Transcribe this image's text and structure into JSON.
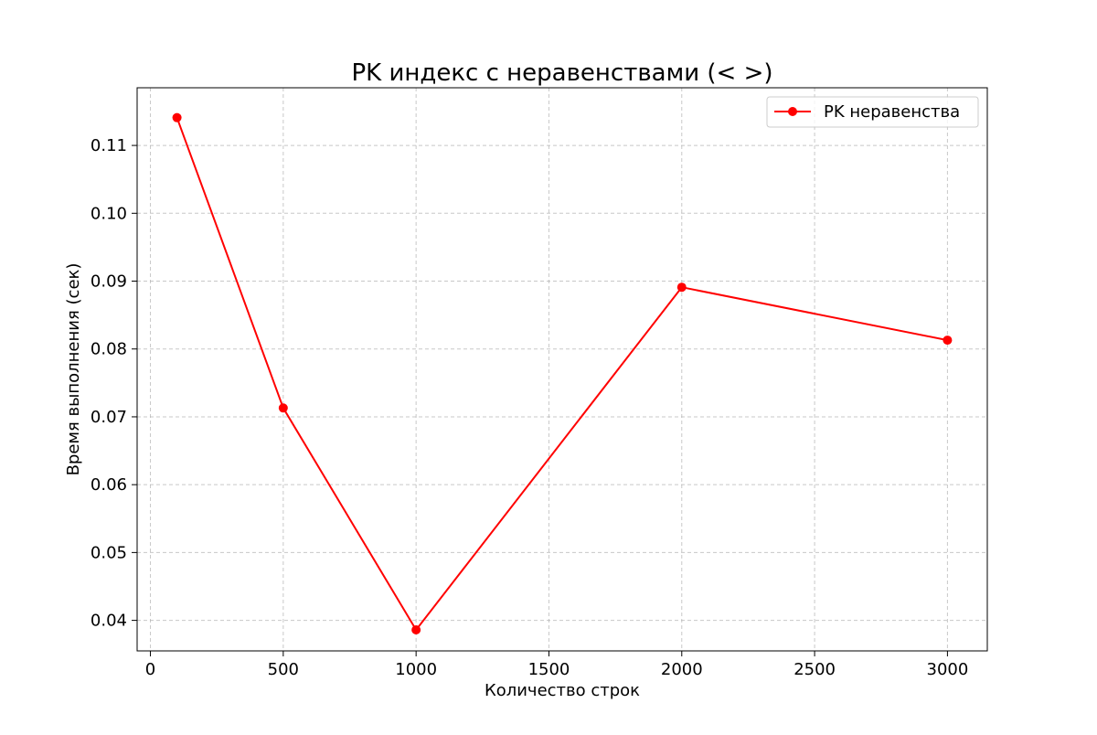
{
  "chart_data": {
    "type": "line",
    "title": "PK индекс с неравенствами (< >)",
    "xlabel": "Количество строк",
    "ylabel": "Время выполнения (сек)",
    "xlim": [
      -50,
      3150
    ],
    "ylim": [
      0.0355,
      0.1185
    ],
    "xticks": [
      0,
      500,
      1000,
      1500,
      2000,
      2500,
      3000
    ],
    "yticks": [
      0.04,
      0.05,
      0.06,
      0.07,
      0.08,
      0.09,
      0.1,
      0.11
    ],
    "ytick_labels": [
      "0.04",
      "0.05",
      "0.06",
      "0.07",
      "0.08",
      "0.09",
      "0.10",
      "0.11"
    ],
    "grid": true,
    "legend_position": "top-right",
    "series": [
      {
        "name": "PK неравенства",
        "color": "#ff0000",
        "marker": "circle",
        "x": [
          100,
          500,
          1000,
          2000,
          3000
        ],
        "y": [
          0.1141,
          0.0713,
          0.0386,
          0.0891,
          0.0813
        ]
      }
    ]
  }
}
